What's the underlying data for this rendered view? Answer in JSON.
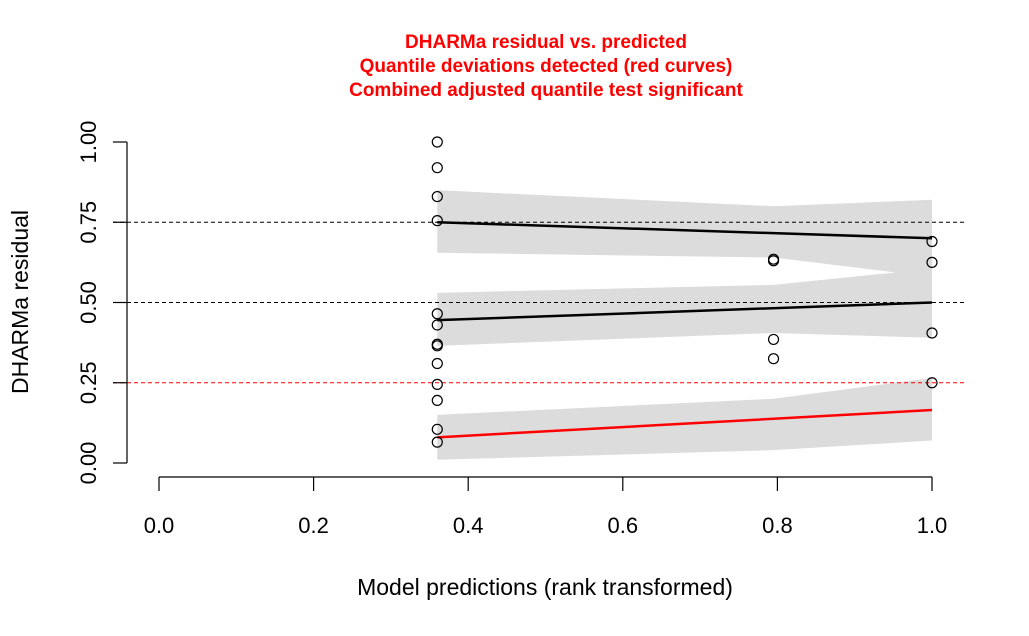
{
  "chart_data": {
    "type": "scatter",
    "title_lines": [
      "DHARMa residual vs. predicted",
      "Quantile deviations detected (red curves)",
      "Combined adjusted quantile test significant"
    ],
    "title_color": "#ff0000",
    "xlabel": "Model predictions (rank transformed)",
    "ylabel": "DHARMa residual",
    "xlim": [
      0.0,
      1.0
    ],
    "ylim": [
      0.0,
      1.0
    ],
    "x_ticks": [
      "0.0",
      "0.2",
      "0.4",
      "0.6",
      "0.8",
      "1.0"
    ],
    "y_ticks": [
      "0.00",
      "0.25",
      "0.50",
      "0.75",
      "1.00"
    ],
    "points": [
      {
        "x": 0.36,
        "y": 1.0
      },
      {
        "x": 0.36,
        "y": 0.92
      },
      {
        "x": 0.36,
        "y": 0.83
      },
      {
        "x": 0.36,
        "y": 0.755
      },
      {
        "x": 0.36,
        "y": 0.465
      },
      {
        "x": 0.36,
        "y": 0.43
      },
      {
        "x": 0.36,
        "y": 0.37
      },
      {
        "x": 0.36,
        "y": 0.365
      },
      {
        "x": 0.36,
        "y": 0.31
      },
      {
        "x": 0.36,
        "y": 0.245
      },
      {
        "x": 0.36,
        "y": 0.195
      },
      {
        "x": 0.36,
        "y": 0.105
      },
      {
        "x": 0.36,
        "y": 0.065
      },
      {
        "x": 0.795,
        "y": 0.635
      },
      {
        "x": 0.795,
        "y": 0.63
      },
      {
        "x": 0.795,
        "y": 0.385
      },
      {
        "x": 0.795,
        "y": 0.325
      },
      {
        "x": 1.0,
        "y": 0.69
      },
      {
        "x": 1.0,
        "y": 0.625
      },
      {
        "x": 1.0,
        "y": 0.405
      },
      {
        "x": 1.0,
        "y": 0.25
      }
    ],
    "reference_lines": [
      {
        "y": 0.25,
        "color": "#ff0000"
      },
      {
        "y": 0.5,
        "color": "#000000"
      },
      {
        "y": 0.75,
        "color": "#000000"
      }
    ],
    "quantile_fits": [
      {
        "quantile": 0.25,
        "color": "#ff0000",
        "line": [
          [
            0.36,
            0.08
          ],
          [
            1.0,
            0.165
          ]
        ],
        "band_upper": [
          [
            0.36,
            0.15
          ],
          [
            0.795,
            0.2
          ],
          [
            1.0,
            0.265
          ]
        ],
        "band_lower": [
          [
            0.36,
            0.01
          ],
          [
            0.795,
            0.04
          ],
          [
            1.0,
            0.07
          ]
        ]
      },
      {
        "quantile": 0.5,
        "color": "#000000",
        "line": [
          [
            0.36,
            0.445
          ],
          [
            1.0,
            0.5
          ]
        ],
        "band_upper": [
          [
            0.36,
            0.53
          ],
          [
            0.795,
            0.555
          ],
          [
            1.0,
            0.605
          ]
        ],
        "band_lower": [
          [
            0.36,
            0.365
          ],
          [
            0.795,
            0.405
          ],
          [
            1.0,
            0.39
          ]
        ]
      },
      {
        "quantile": 0.75,
        "color": "#000000",
        "line": [
          [
            0.36,
            0.75
          ],
          [
            1.0,
            0.7
          ]
        ],
        "band_upper": [
          [
            0.36,
            0.85
          ],
          [
            0.795,
            0.8
          ],
          [
            1.0,
            0.82
          ]
        ],
        "band_lower": [
          [
            0.36,
            0.655
          ],
          [
            0.795,
            0.64
          ],
          [
            1.0,
            0.58
          ]
        ]
      }
    ],
    "band_color": "#dcdcdc",
    "grid": false,
    "legend": "none"
  }
}
